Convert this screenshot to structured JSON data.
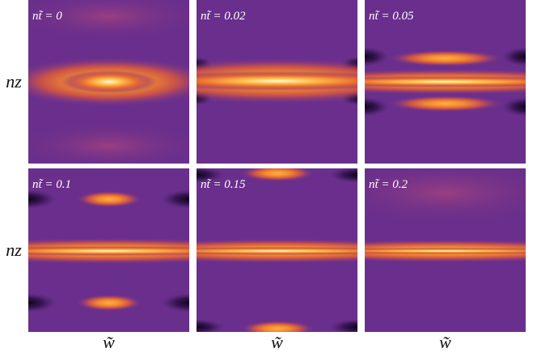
{
  "panels": [
    {
      "label": "nt̃ = 0"
    },
    {
      "label": "nt̃ = 0.02"
    },
    {
      "label": "nt̃ = 0.05"
    },
    {
      "label": "nt̃ = 0.1"
    },
    {
      "label": "nt̃ = 0.15"
    },
    {
      "label": "nt̃ = 0.2"
    }
  ],
  "y_axis_labels": [
    "nz",
    "nz"
  ],
  "x_axis_labels": [
    "w̃",
    "w̃",
    "w̃"
  ]
}
